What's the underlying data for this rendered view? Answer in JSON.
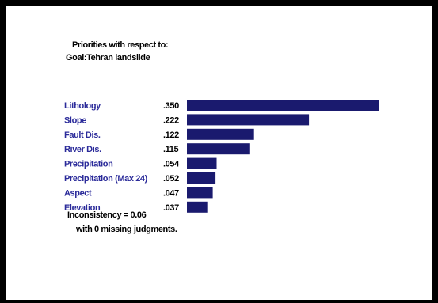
{
  "header": {
    "line1": "Priorities with respect to:",
    "line2": "Goal:Tehran landslide"
  },
  "colors": {
    "frame": "#000000",
    "background": "#ffffff",
    "bar": "#1a1a6e",
    "category_label": "#2b2b9a",
    "value_label": "#000000"
  },
  "chart_data": {
    "type": "bar",
    "orientation": "horizontal",
    "categories": [
      "Lithology",
      "Slope",
      "Fault Dis.",
      "River Dis.",
      "Precipitation",
      "Precipitation (Max 24)",
      "Aspect",
      "Elevation"
    ],
    "values": [
      0.35,
      0.222,
      0.122,
      0.115,
      0.054,
      0.052,
      0.047,
      0.037
    ],
    "value_labels": [
      ".350",
      ".222",
      ".122",
      ".115",
      ".054",
      ".052",
      ".047",
      ".037"
    ],
    "xlim": [
      0,
      0.35
    ],
    "grid": false,
    "legend": "none"
  },
  "footer": {
    "inconsistency": "Inconsistency = 0.06",
    "missing": "with 0  missing judgments."
  }
}
